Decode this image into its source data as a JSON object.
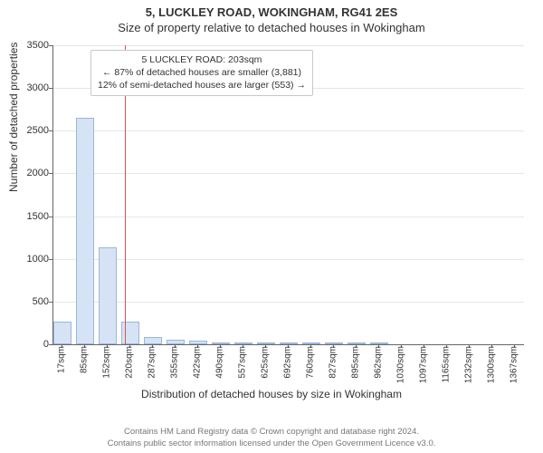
{
  "header": {
    "title": "5, LUCKLEY ROAD, WOKINGHAM, RG41 2ES",
    "subtitle": "Size of property relative to detached houses in Wokingham"
  },
  "chart": {
    "type": "bar",
    "ylabel": "Number of detached properties",
    "xlabel": "Distribution of detached houses by size in Wokingham",
    "ylim": [
      0,
      3500
    ],
    "ytick_step": 500,
    "bar_fill": "#d6e3f4",
    "bar_border": "#9ab6dc",
    "grid_color": "#e6e6e6",
    "axis_color": "#666666",
    "background": "#ffffff",
    "ref_line": {
      "x": 203,
      "color": "#d9534f"
    },
    "xticks": [
      17,
      85,
      152,
      220,
      287,
      355,
      422,
      490,
      557,
      625,
      692,
      760,
      827,
      895,
      962,
      1030,
      1097,
      1165,
      1232,
      1300,
      1367
    ],
    "xtick_suffix": "sqm",
    "bars": [
      {
        "x": 17,
        "v": 270
      },
      {
        "x": 85,
        "v": 2650
      },
      {
        "x": 152,
        "v": 1140
      },
      {
        "x": 220,
        "v": 270
      },
      {
        "x": 287,
        "v": 90
      },
      {
        "x": 355,
        "v": 50
      },
      {
        "x": 422,
        "v": 40
      },
      {
        "x": 490,
        "v": 25
      },
      {
        "x": 557,
        "v": 12
      },
      {
        "x": 625,
        "v": 8
      },
      {
        "x": 692,
        "v": 5
      },
      {
        "x": 760,
        "v": 4
      },
      {
        "x": 827,
        "v": 3
      },
      {
        "x": 895,
        "v": 2
      },
      {
        "x": 962,
        "v": 2
      },
      {
        "x": 1030,
        "v": 0
      },
      {
        "x": 1097,
        "v": 0
      },
      {
        "x": 1165,
        "v": 0
      },
      {
        "x": 1232,
        "v": 0
      },
      {
        "x": 1300,
        "v": 0
      },
      {
        "x": 1367,
        "v": 0
      }
    ]
  },
  "annotation": {
    "line1": "5 LUCKLEY ROAD: 203sqm",
    "line2": "← 87% of detached houses are smaller (3,881)",
    "line3": "12% of semi-detached houses are larger (553) →"
  },
  "footer": {
    "line1": "Contains HM Land Registry data © Crown copyright and database right 2024.",
    "line2": "Contains public sector information licensed under the Open Government Licence v3.0."
  }
}
